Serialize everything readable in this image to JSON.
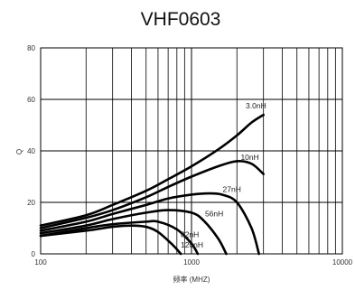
{
  "chart_data": {
    "type": "line",
    "title": "VHF0603",
    "xlabel": "频率 (MHZ)",
    "ylabel": "Q",
    "x_scale": "log",
    "xlim": [
      100,
      10000
    ],
    "ylim": [
      0,
      80
    ],
    "x_ticks": [
      100,
      1000,
      10000
    ],
    "x_tick_labels": [
      "100",
      "1000",
      "10000"
    ],
    "y_ticks": [
      0,
      20,
      40,
      60,
      80
    ],
    "y_tick_labels": [
      "0",
      "20",
      "40",
      "60",
      "80"
    ],
    "grid": true,
    "series": [
      {
        "name": "3.0nH",
        "x": [
          100,
          200,
          300,
          500,
          700,
          1000,
          1500,
          2000,
          2500,
          3000
        ],
        "y": [
          11,
          15,
          19,
          24.5,
          29,
          34,
          40.5,
          46,
          51,
          54
        ]
      },
      {
        "name": "10nH",
        "x": [
          100,
          200,
          300,
          500,
          700,
          1000,
          1500,
          2000,
          2500,
          3000
        ],
        "y": [
          10,
          14,
          17,
          22,
          26,
          30,
          34,
          36,
          35,
          31
        ]
      },
      {
        "name": "27nH",
        "x": [
          100,
          200,
          300,
          500,
          700,
          1000,
          1300,
          1600,
          2000,
          2500,
          2800
        ],
        "y": [
          9,
          12.5,
          15.5,
          19,
          21.5,
          23,
          23.5,
          23,
          20,
          10,
          0
        ]
      },
      {
        "name": "56nH",
        "x": [
          100,
          200,
          300,
          500,
          700,
          1000,
          1200,
          1500,
          1700
        ],
        "y": [
          8,
          11,
          13.5,
          16,
          17,
          16,
          13,
          6,
          0
        ]
      },
      {
        "name": "82nH",
        "x": [
          100,
          200,
          300,
          500,
          600,
          800,
          1000,
          1100
        ],
        "y": [
          7,
          10,
          11.5,
          12.5,
          12.5,
          9.5,
          4,
          0
        ]
      },
      {
        "name": "120nH",
        "x": [
          100,
          200,
          300,
          400,
          500,
          600,
          750,
          850
        ],
        "y": [
          7,
          9,
          10.5,
          11,
          10.5,
          8.5,
          3.5,
          0
        ]
      }
    ]
  }
}
